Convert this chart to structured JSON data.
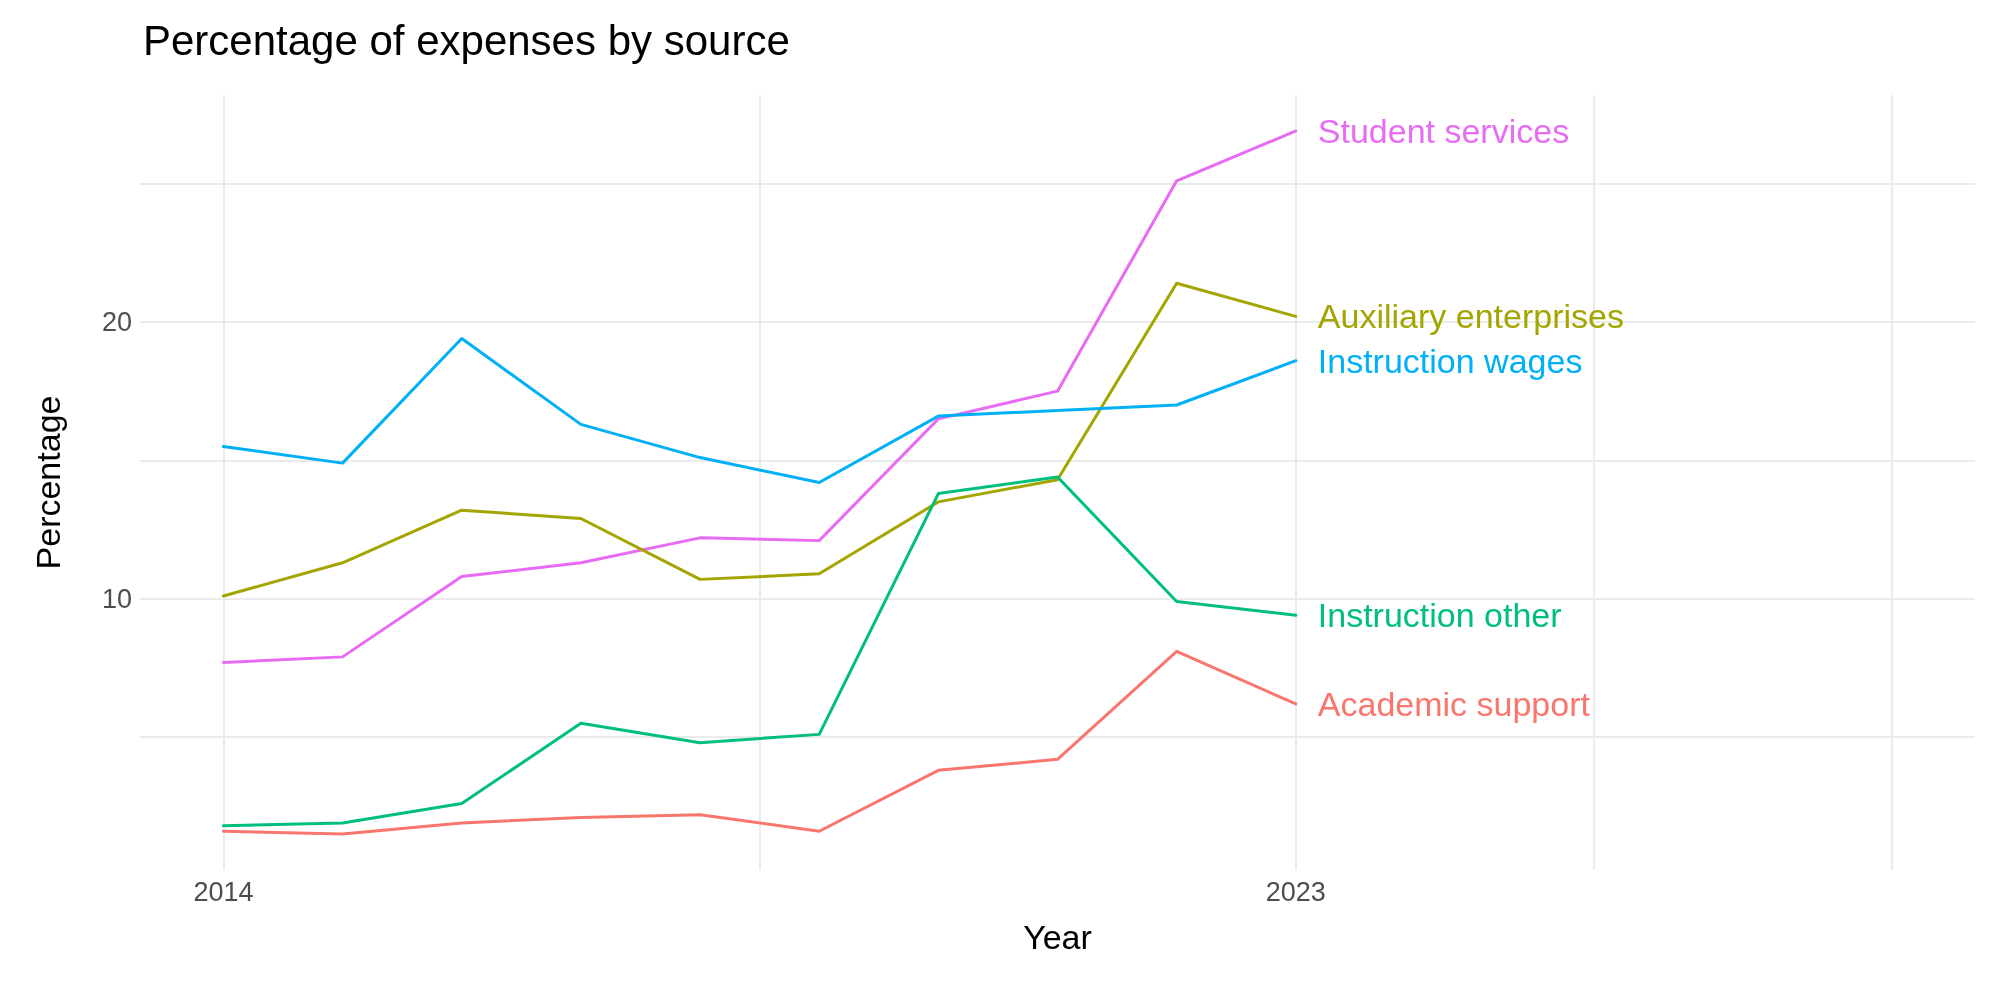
{
  "chart_data": {
    "type": "line",
    "title": "Percentage of expenses by source",
    "xlabel": "Year",
    "ylabel": "Percentage",
    "x": [
      2014,
      2015,
      2016,
      2017,
      2018,
      2019,
      2020,
      2021,
      2022,
      2023
    ],
    "series": [
      {
        "name": "Student services",
        "color": "#e76bf3",
        "values": [
          7.7,
          7.9,
          10.8,
          11.3,
          12.2,
          12.1,
          16.5,
          17.5,
          25.1,
          26.9
        ]
      },
      {
        "name": "Auxiliary enterprises",
        "color": "#a3a500",
        "values": [
          10.1,
          11.3,
          13.2,
          12.9,
          10.7,
          10.9,
          13.5,
          14.3,
          21.4,
          20.2
        ]
      },
      {
        "name": "Instruction wages",
        "color": "#00b0f6",
        "values": [
          15.5,
          14.9,
          19.4,
          16.3,
          15.1,
          14.2,
          16.6,
          16.8,
          17.0,
          18.6
        ]
      },
      {
        "name": "Instruction other",
        "color": "#00bf7d",
        "values": [
          1.8,
          1.9,
          2.6,
          5.5,
          4.8,
          5.1,
          13.8,
          14.4,
          9.9,
          9.4
        ]
      },
      {
        "name": "Academic support",
        "color": "#f8766d",
        "values": [
          1.6,
          1.5,
          1.9,
          2.1,
          2.2,
          1.6,
          3.8,
          4.2,
          8.1,
          6.2
        ]
      }
    ],
    "xlim": [
      2013.3,
      2028.7
    ],
    "xticks": [
      2014,
      {
        "value": 2018.5,
        "label": null
      },
      2023,
      {
        "value": 2025.5,
        "label": null
      },
      {
        "value": 2028,
        "label": null
      }
    ],
    "ylim": [
      0.2,
      28.2
    ],
    "yticks": [
      {
        "value": 5,
        "label": null
      },
      10,
      {
        "value": 15,
        "label": null
      },
      20,
      {
        "value": 25,
        "label": null
      }
    ],
    "grid": true,
    "legend": false,
    "marker": "none",
    "line_style": "solid"
  }
}
